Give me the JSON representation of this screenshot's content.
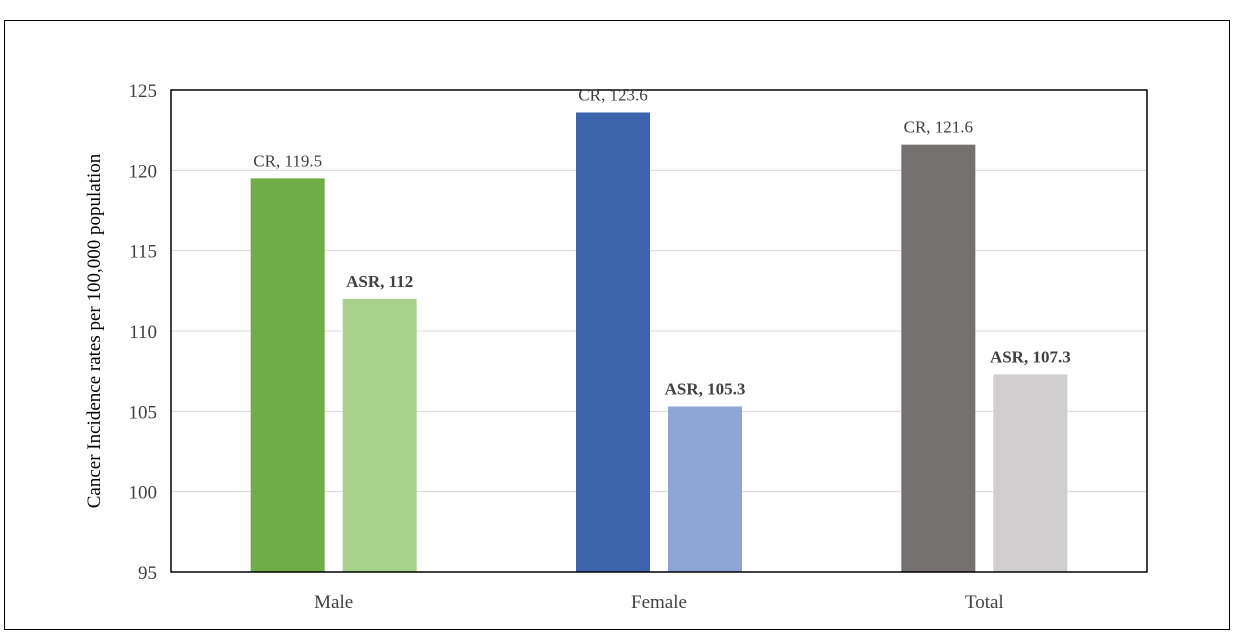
{
  "chart_data": {
    "type": "bar",
    "title": "",
    "xlabel": "",
    "ylabel": "Cancer Incidence rates per 100,000 population",
    "ylim": [
      95,
      125
    ],
    "yticks": [
      95,
      100,
      105,
      110,
      115,
      120,
      125
    ],
    "grid": true,
    "legend": "none",
    "categories": [
      "Male",
      "Female",
      "Total"
    ],
    "bars": [
      [
        {
          "label": "CR, 119.5",
          "value": 119.5,
          "color": "#70AD47",
          "bold": false
        },
        {
          "label": "ASR, 112",
          "value": 112,
          "color": "#A9D18E",
          "bold": true
        }
      ],
      [
        {
          "label": "CR, 123.6",
          "value": 123.6,
          "color": "#3C64AD",
          "bold": false
        },
        {
          "label": "ASR, 105.3",
          "value": 105.3,
          "color": "#8FA5D4",
          "bold": true
        }
      ],
      [
        {
          "label": "CR, 121.6",
          "value": 121.6,
          "color": "#767171",
          "bold": false
        },
        {
          "label": "ASR, 107.3",
          "value": 107.3,
          "color": "#D0CECE",
          "bold": true
        }
      ]
    ]
  }
}
